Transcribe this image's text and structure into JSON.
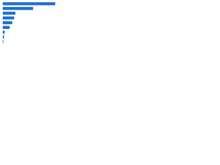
{
  "chart_data": {
    "type": "bar",
    "orientation": "horizontal",
    "categories": [
      null,
      null,
      null,
      null,
      null,
      null,
      null,
      null,
      null
    ],
    "values": [
      83,
      48,
      20,
      18,
      15,
      11,
      3,
      2,
      1
    ],
    "color": "#1f6fd1",
    "xlim": [
      0,
      100
    ]
  }
}
